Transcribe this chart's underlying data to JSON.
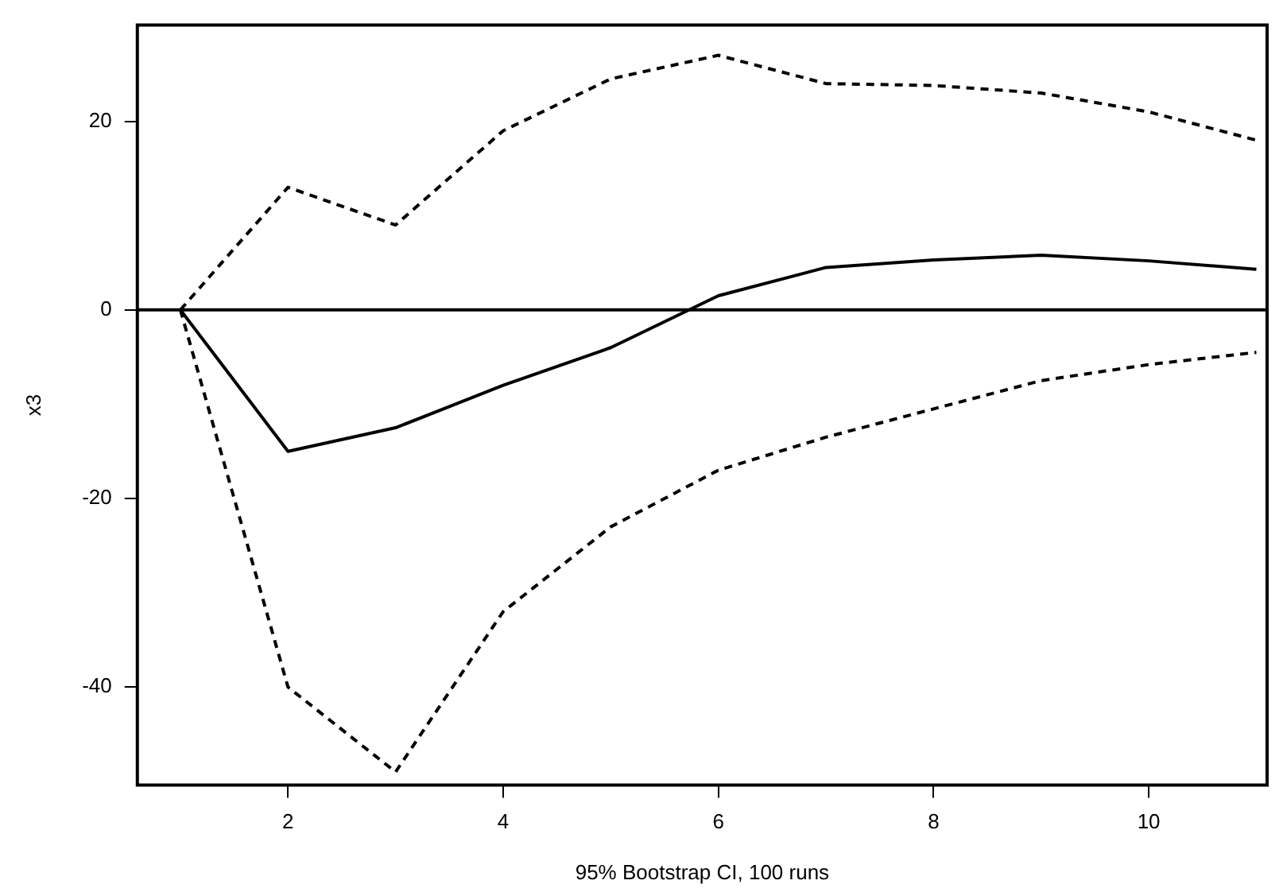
{
  "chart_data": {
    "type": "line",
    "xlabel": "95% Bootstrap CI, 100 runs",
    "ylabel": "x3",
    "x": [
      1,
      2,
      3,
      4,
      5,
      6,
      7,
      8,
      9,
      10,
      11
    ],
    "series": [
      {
        "color": "#000000",
        "line_style": "solid",
        "values": [
          0,
          -15,
          -12.5,
          -8,
          -4,
          1.5,
          4.5,
          5.3,
          5.8,
          5.2,
          4.3
        ]
      },
      {
        "color": "#000000",
        "line_style": "dashed",
        "values": [
          0,
          13,
          9,
          19,
          24.5,
          27,
          24,
          23.8,
          23,
          21,
          18
        ]
      },
      {
        "color": "#000000",
        "line_style": "dashed",
        "values": [
          0,
          -40,
          -49,
          -32,
          -23,
          -17,
          -13.5,
          -10.5,
          -7.5,
          -5.8,
          -4.5
        ]
      }
    ],
    "xlim": [
      0.6,
      11.1
    ],
    "xticks": [
      2,
      4,
      6,
      8,
      10
    ],
    "ylim": [
      -50.4,
      30.2
    ],
    "yticks": [
      -40,
      -20,
      0,
      20
    ],
    "ref_lines": [
      {
        "axis": "y",
        "value": 0,
        "color": "#000000",
        "line_style": "solid"
      }
    ],
    "grid": false,
    "legend": false,
    "marker": "none"
  }
}
